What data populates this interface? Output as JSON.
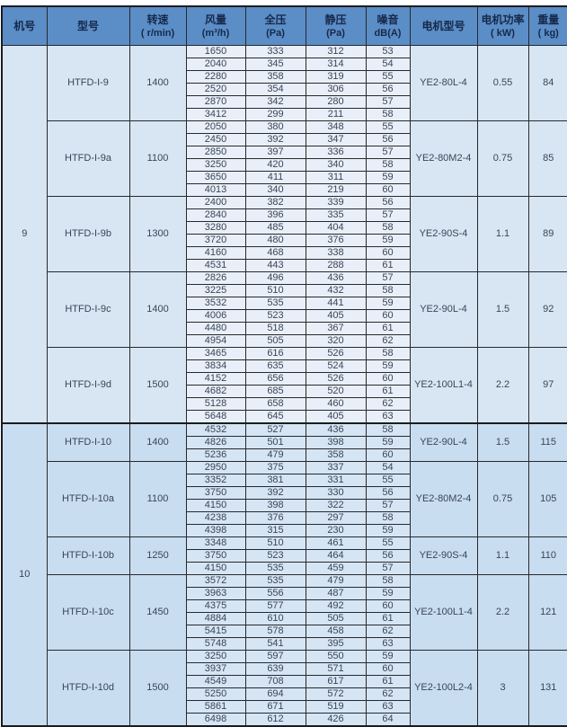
{
  "table": {
    "title_semantics": "HTFD-I fan performance specification table",
    "colors": {
      "header_bg": "#5b8dc7",
      "header_text": "#16294a",
      "group9_label_bg": "#d8e6f3",
      "group9_data_bg": "#e9eff8",
      "group10_label_bg": "#c8ddf0",
      "group10_data_bg": "#d6e5f3",
      "border": "#26292e",
      "body_text": "#394557"
    },
    "columns": [
      {
        "key": "machine_no",
        "label": "机号",
        "sub": ""
      },
      {
        "key": "model",
        "label": "型号",
        "sub": ""
      },
      {
        "key": "speed",
        "label": "转速",
        "sub": "( r/min)"
      },
      {
        "key": "airflow",
        "label": "风量",
        "sub": "(m³/h)"
      },
      {
        "key": "total_pressure",
        "label": "全压",
        "sub": "(Pa)"
      },
      {
        "key": "static_pressure",
        "label": "静压",
        "sub": "(Pa)"
      },
      {
        "key": "noise",
        "label": "噪音",
        "sub": "dB(A)"
      },
      {
        "key": "motor_model",
        "label": "电机型号",
        "sub": ""
      },
      {
        "key": "motor_power",
        "label": "电机功率",
        "sub": "( kW)"
      },
      {
        "key": "weight",
        "label": "重量",
        "sub": "( kg)"
      }
    ],
    "groups": [
      {
        "machine_no": "9",
        "sections": [
          {
            "model": "HTFD-I-9",
            "speed": "1400",
            "motor": "YE2-80L-4",
            "power": "0.55",
            "weight": "84",
            "rows": [
              [
                1650,
                333,
                312,
                53
              ],
              [
                2040,
                345,
                314,
                54
              ],
              [
                2280,
                358,
                319,
                55
              ],
              [
                2520,
                354,
                306,
                56
              ],
              [
                2870,
                342,
                280,
                57
              ],
              [
                3412,
                299,
                211,
                58
              ]
            ]
          },
          {
            "model": "HTFD-I-9a",
            "speed": "1100",
            "motor": "YE2-80M2-4",
            "power": "0.75",
            "weight": "85",
            "rows": [
              [
                2050,
                380,
                348,
                55
              ],
              [
                2450,
                392,
                347,
                56
              ],
              [
                2850,
                397,
                336,
                57
              ],
              [
                3250,
                420,
                340,
                58
              ],
              [
                3650,
                411,
                311,
                59
              ],
              [
                4013,
                340,
                219,
                60
              ]
            ]
          },
          {
            "model": "HTFD-I-9b",
            "speed": "1300",
            "motor": "YE2-90S-4",
            "power": "1.1",
            "weight": "89",
            "rows": [
              [
                2400,
                382,
                339,
                56
              ],
              [
                2840,
                396,
                335,
                57
              ],
              [
                3280,
                485,
                404,
                58
              ],
              [
                3720,
                480,
                376,
                59
              ],
              [
                4160,
                468,
                338,
                60
              ],
              [
                4531,
                443,
                288,
                61
              ]
            ]
          },
          {
            "model": "HTFD-I-9c",
            "speed": "1400",
            "motor": "YE2-90L-4",
            "power": "1.5",
            "weight": "92",
            "rows": [
              [
                2826,
                496,
                436,
                57
              ],
              [
                3225,
                510,
                432,
                58
              ],
              [
                3532,
                535,
                441,
                59
              ],
              [
                4006,
                523,
                405,
                60
              ],
              [
                4480,
                518,
                367,
                61
              ],
              [
                4954,
                505,
                320,
                62
              ]
            ]
          },
          {
            "model": "HTFD-I-9d",
            "speed": "1500",
            "motor": "YE2-100L1-4",
            "power": "2.2",
            "weight": "97",
            "rows": [
              [
                3465,
                616,
                526,
                58
              ],
              [
                3834,
                635,
                524,
                59
              ],
              [
                4152,
                656,
                526,
                60
              ],
              [
                4682,
                685,
                520,
                61
              ],
              [
                5128,
                658,
                460,
                62
              ],
              [
                5648,
                645,
                405,
                63
              ]
            ]
          }
        ]
      },
      {
        "machine_no": "10",
        "sections": [
          {
            "model": "HTFD-I-10",
            "speed": "1400",
            "motor": "YE2-90L-4",
            "power": "1.5",
            "weight": "115",
            "rows": [
              [
                4532,
                527,
                436,
                58
              ],
              [
                4826,
                501,
                398,
                59
              ],
              [
                5236,
                479,
                358,
                60
              ]
            ]
          },
          {
            "model": "HTFD-I-10a",
            "speed": "1100",
            "motor": "YE2-80M2-4",
            "power": "0.75",
            "weight": "105",
            "rows": [
              [
                2950,
                375,
                337,
                54
              ],
              [
                3352,
                381,
                331,
                55
              ],
              [
                3750,
                392,
                330,
                56
              ],
              [
                4150,
                398,
                322,
                57
              ],
              [
                4238,
                376,
                297,
                58
              ],
              [
                4398,
                315,
                230,
                59
              ]
            ]
          },
          {
            "model": "HTFD-I-10b",
            "speed": "1250",
            "motor": "YE2-90S-4",
            "power": "1.1",
            "weight": "110",
            "rows": [
              [
                3348,
                510,
                461,
                55
              ],
              [
                3750,
                523,
                464,
                56
              ],
              [
                4150,
                535,
                459,
                57
              ]
            ]
          },
          {
            "model": "HTFD-I-10c",
            "speed": "1450",
            "motor": "YE2-100L1-4",
            "power": "2.2",
            "weight": "121",
            "rows": [
              [
                3572,
                535,
                479,
                58
              ],
              [
                3963,
                556,
                487,
                59
              ],
              [
                4375,
                577,
                492,
                60
              ],
              [
                4884,
                610,
                505,
                61
              ],
              [
                5415,
                578,
                458,
                62
              ],
              [
                5748,
                541,
                395,
                63
              ]
            ]
          },
          {
            "model": "HTFD-I-10d",
            "speed": "1500",
            "motor": "YE2-100L2-4",
            "power": "3",
            "weight": "131",
            "rows": [
              [
                3250,
                597,
                550,
                59
              ],
              [
                3937,
                639,
                571,
                60
              ],
              [
                4549,
                708,
                617,
                61
              ],
              [
                5250,
                694,
                572,
                62
              ],
              [
                5861,
                671,
                519,
                63
              ],
              [
                6498,
                612,
                426,
                64
              ]
            ]
          }
        ]
      }
    ]
  }
}
